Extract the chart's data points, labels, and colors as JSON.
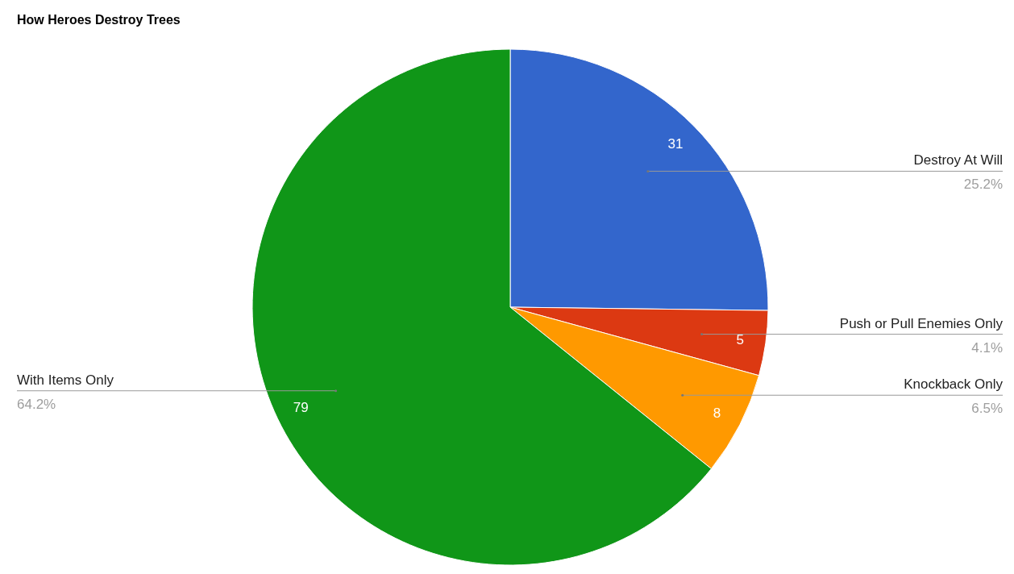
{
  "chart_data": {
    "type": "pie",
    "title": "How Heroes Destroy Trees",
    "categories": [
      "Destroy At Will",
      "Push or Pull Enemies Only",
      "Knockback Only",
      "With Items Only"
    ],
    "values": [
      31,
      5,
      8,
      79
    ],
    "colors": [
      "#3366cc",
      "#dc3912",
      "#ff9900",
      "#109618"
    ],
    "data_labels": true,
    "annotations": [
      {
        "text": "25.2%",
        "x": "Destroy At Will"
      },
      {
        "text": "4.1%",
        "x": "Push or Pull Enemies Only"
      },
      {
        "text": "6.5%",
        "x": "Knockback Only"
      },
      {
        "text": "64.2%",
        "x": "With Items Only"
      }
    ]
  }
}
